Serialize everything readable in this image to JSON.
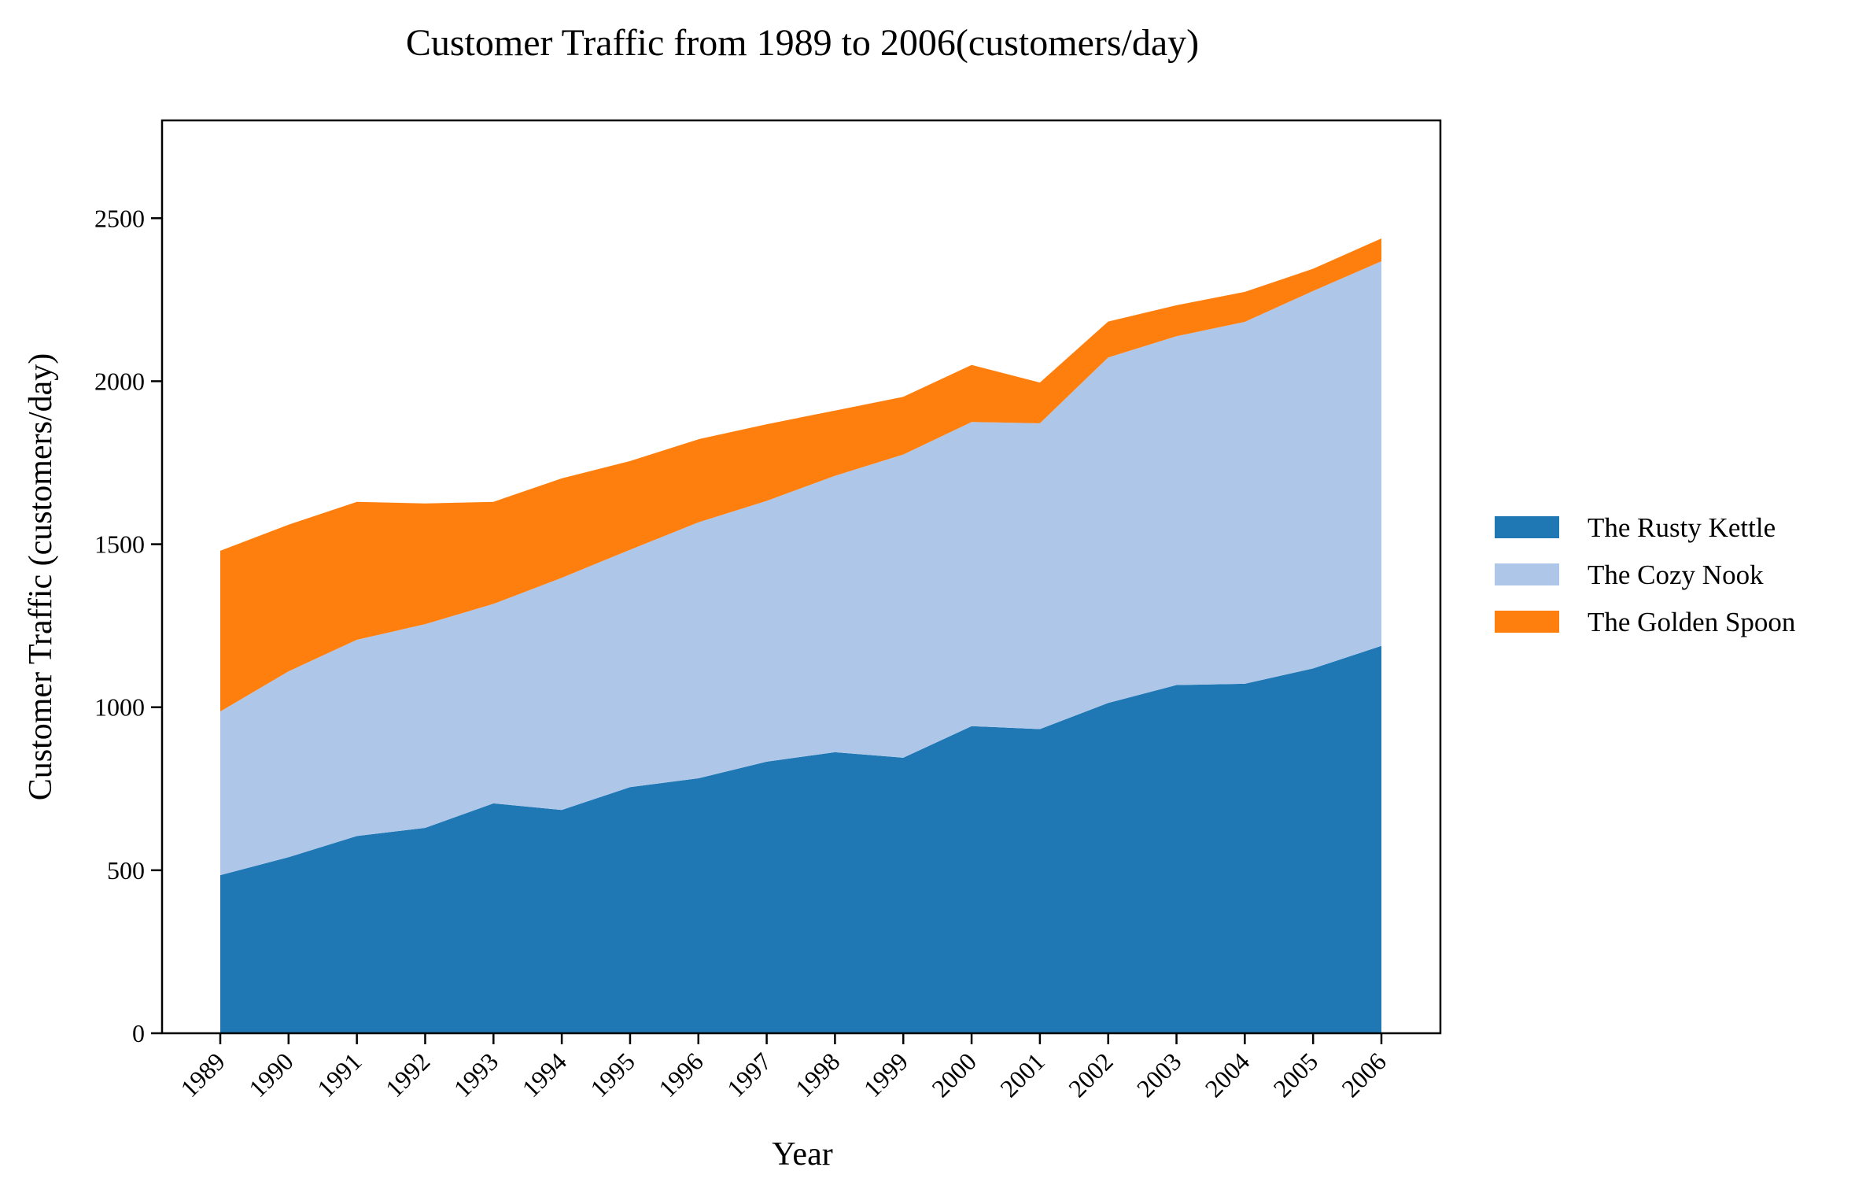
{
  "chart_data": {
    "type": "area",
    "stacked": true,
    "title": "Customer Traffic from 1989 to 2006(customers/day)",
    "xlabel": "Year",
    "ylabel": "Customer Traffic (customers/day)",
    "ylim": [
      0,
      2800
    ],
    "yticks": [
      "0",
      "500",
      "1000",
      "1500",
      "2000",
      "2500"
    ],
    "ytick_values": [
      0,
      500,
      1000,
      1500,
      2000,
      2500
    ],
    "categories": [
      "1989",
      "1990",
      "1991",
      "1992",
      "1993",
      "1994",
      "1995",
      "1996",
      "1997",
      "1998",
      "1999",
      "2000",
      "2001",
      "2002",
      "2003",
      "2004",
      "2005",
      "2006"
    ],
    "grid": false,
    "legend_position": "right",
    "series": [
      {
        "name": "The Rusty Kettle",
        "color": "#1f77b4",
        "values": [
          485,
          540,
          605,
          630,
          705,
          685,
          755,
          782,
          833,
          862,
          845,
          942,
          933,
          1013,
          1068,
          1072,
          1119,
          1188
        ]
      },
      {
        "name": "The Cozy Nook",
        "color": "#aec7e8",
        "values": [
          502,
          570,
          602,
          625,
          612,
          712,
          728,
          785,
          800,
          848,
          930,
          933,
          938,
          1060,
          1070,
          1110,
          1158,
          1180
        ]
      },
      {
        "name": "The Golden Spoon",
        "color": "#ff7f0e",
        "values": [
          493,
          450,
          423,
          370,
          313,
          305,
          272,
          255,
          235,
          200,
          177,
          175,
          125,
          110,
          95,
          92,
          68,
          70
        ]
      }
    ]
  }
}
